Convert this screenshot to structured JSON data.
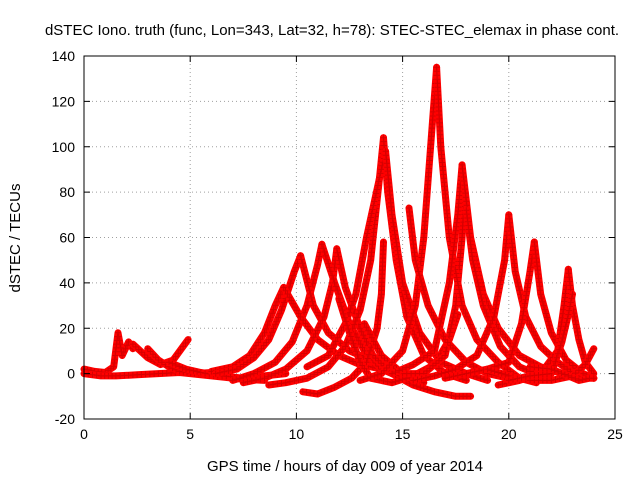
{
  "chart_data": {
    "type": "scatter",
    "title": "dSTEC Iono. truth (func, Lon=343, Lat=32, h=78): STEC-STEC_elemax in phase cont.",
    "xlabel": "GPS time / hours of day 009 of year 2014",
    "ylabel": "dSTEC  / TECUs",
    "xlim": [
      0,
      25
    ],
    "ylim": [
      -20,
      140
    ],
    "xticks": [
      "0",
      "5",
      "10",
      "15",
      "20",
      "25"
    ],
    "yticks": [
      "-20",
      "0",
      "20",
      "40",
      "60",
      "80",
      "100",
      "120",
      "140"
    ],
    "grid": true,
    "marker": "+",
    "colors": {
      "points": "#ff0000",
      "markers": "#d40000",
      "axes": "#000000",
      "grid": "#a0a0a0"
    },
    "series": [
      {
        "values": [
          [
            0,
            2
          ],
          [
            0.5,
            1
          ],
          [
            1,
            0.5
          ],
          [
            1.4,
            3
          ],
          [
            1.6,
            18
          ],
          [
            1.8,
            8
          ],
          [
            2.1,
            14
          ],
          [
            2.3,
            11
          ]
        ]
      },
      {
        "values": [
          [
            0,
            0
          ],
          [
            0.8,
            -1
          ],
          [
            1.5,
            -1
          ],
          [
            2.5,
            -0.5
          ],
          [
            3.5,
            0
          ],
          [
            4.5,
            0.5
          ],
          [
            5.5,
            -0.5
          ],
          [
            6.5,
            -1.5
          ],
          [
            7.5,
            -2.5
          ],
          [
            8.5,
            -3
          ]
        ]
      },
      {
        "values": [
          [
            2.3,
            13
          ],
          [
            3,
            7
          ],
          [
            3.6,
            4
          ],
          [
            4.2,
            6
          ],
          [
            4.9,
            15
          ]
        ]
      },
      {
        "values": [
          [
            3,
            11
          ],
          [
            3.5,
            6
          ],
          [
            4,
            3
          ],
          [
            4.5,
            1
          ],
          [
            5.2,
            0
          ],
          [
            6,
            0.5
          ]
        ]
      },
      {
        "values": [
          [
            4,
            5
          ],
          [
            4.8,
            2
          ],
          [
            5.5,
            0.5
          ],
          [
            6.5,
            -1
          ],
          [
            7.5,
            -2
          ],
          [
            8.5,
            -1
          ],
          [
            9.5,
            0
          ]
        ]
      },
      {
        "values": [
          [
            6,
            1
          ],
          [
            7,
            3
          ],
          [
            7.8,
            8
          ],
          [
            8.5,
            18
          ],
          [
            9,
            30
          ],
          [
            9.4,
            38
          ]
        ]
      },
      {
        "values": [
          [
            6.2,
            0
          ],
          [
            7.2,
            2
          ],
          [
            8,
            7
          ],
          [
            8.7,
            15
          ],
          [
            9.3,
            28
          ],
          [
            9.9,
            45
          ],
          [
            10.2,
            52
          ]
        ]
      },
      {
        "values": [
          [
            7,
            -3
          ],
          [
            8,
            0
          ],
          [
            9,
            5
          ],
          [
            9.8,
            14
          ],
          [
            10.5,
            30
          ],
          [
            11,
            48
          ],
          [
            11.2,
            57
          ]
        ]
      },
      {
        "values": [
          [
            9.4,
            38
          ],
          [
            10.2,
            25
          ],
          [
            11,
            15
          ],
          [
            12,
            8
          ],
          [
            13,
            4
          ],
          [
            14,
            2
          ]
        ]
      },
      {
        "values": [
          [
            10.2,
            52
          ],
          [
            10.8,
            30
          ],
          [
            11.5,
            18
          ],
          [
            12.5,
            10
          ],
          [
            13.5,
            6
          ]
        ]
      },
      {
        "values": [
          [
            7.5,
            -4
          ],
          [
            8.5,
            -2
          ],
          [
            9.5,
            2
          ],
          [
            10.5,
            10
          ],
          [
            11.3,
            25
          ],
          [
            11.7,
            40
          ],
          [
            11.9,
            55
          ]
        ]
      },
      {
        "values": [
          [
            11.2,
            57
          ],
          [
            11.8,
            40
          ],
          [
            12.5,
            22
          ],
          [
            13.2,
            10
          ],
          [
            14,
            2
          ],
          [
            15,
            -2
          ],
          [
            16,
            -4
          ]
        ]
      },
      {
        "values": [
          [
            11.9,
            55
          ],
          [
            12.3,
            38
          ],
          [
            13,
            20
          ],
          [
            13.6,
            8
          ],
          [
            14.5,
            0
          ],
          [
            15.5,
            -5
          ],
          [
            16.5,
            -8
          ],
          [
            17.5,
            -10
          ],
          [
            18.2,
            -10
          ]
        ]
      },
      {
        "values": [
          [
            10.3,
            -8
          ],
          [
            11,
            -9
          ],
          [
            11.8,
            -6
          ],
          [
            12.6,
            -2
          ],
          [
            13.3,
            5
          ],
          [
            13.8,
            20
          ],
          [
            14,
            35
          ],
          [
            14.1,
            58
          ]
        ]
      },
      {
        "values": [
          [
            8.7,
            -5
          ],
          [
            9.5,
            -4
          ],
          [
            10.5,
            -2
          ],
          [
            11.5,
            3
          ],
          [
            12.3,
            12
          ],
          [
            13,
            28
          ],
          [
            13.5,
            50
          ],
          [
            13.9,
            85
          ],
          [
            14.1,
            104
          ]
        ]
      },
      {
        "values": [
          [
            14.1,
            104
          ],
          [
            14.3,
            80
          ],
          [
            14.7,
            50
          ],
          [
            15.2,
            25
          ],
          [
            16,
            8
          ],
          [
            17,
            0
          ],
          [
            18,
            -3
          ]
        ]
      },
      {
        "values": [
          [
            10.5,
            3
          ],
          [
            11.5,
            8
          ],
          [
            12.3,
            22
          ],
          [
            12.8,
            35
          ],
          [
            13.3,
            60
          ],
          [
            14,
            90
          ],
          [
            14.2,
            98
          ]
        ]
      },
      {
        "values": [
          [
            14.2,
            98
          ],
          [
            14.5,
            70
          ],
          [
            15,
            40
          ],
          [
            15.8,
            18
          ],
          [
            16.8,
            5
          ],
          [
            18,
            0
          ],
          [
            19,
            -3
          ]
        ]
      },
      {
        "values": [
          [
            12,
            33
          ],
          [
            12.5,
            18
          ],
          [
            13,
            5
          ],
          [
            13.5,
            -2
          ],
          [
            14.5,
            -4
          ],
          [
            15.5,
            -1
          ],
          [
            16.5,
            4
          ],
          [
            17.2,
            15
          ],
          [
            17.6,
            26
          ]
        ]
      },
      {
        "values": [
          [
            13.2,
            22
          ],
          [
            14,
            8
          ],
          [
            15,
            0
          ],
          [
            16,
            0
          ],
          [
            17,
            8
          ],
          [
            17.5,
            30
          ],
          [
            17.8,
            60
          ],
          [
            17.9,
            77
          ]
        ]
      },
      {
        "values": [
          [
            13,
            -3
          ],
          [
            14,
            0
          ],
          [
            15,
            10
          ],
          [
            15.6,
            30
          ],
          [
            16,
            60
          ],
          [
            16.4,
            110
          ],
          [
            16.6,
            135
          ]
        ]
      },
      {
        "values": [
          [
            16.6,
            135
          ],
          [
            16.8,
            100
          ],
          [
            17.2,
            60
          ],
          [
            17.8,
            30
          ],
          [
            18.5,
            15
          ],
          [
            19.5,
            5
          ],
          [
            20.5,
            -2
          ],
          [
            21.3,
            -4
          ]
        ]
      },
      {
        "values": [
          [
            15.3,
            73
          ],
          [
            15.6,
            50
          ],
          [
            16.2,
            30
          ],
          [
            17,
            15
          ],
          [
            18,
            5
          ],
          [
            19,
            0
          ],
          [
            20,
            -2
          ]
        ]
      },
      {
        "values": [
          [
            14.5,
            0
          ],
          [
            15.5,
            4
          ],
          [
            16.5,
            10
          ],
          [
            17.2,
            40
          ],
          [
            17.6,
            70
          ],
          [
            17.8,
            92
          ]
        ]
      },
      {
        "values": [
          [
            17.8,
            92
          ],
          [
            18.2,
            60
          ],
          [
            18.8,
            35
          ],
          [
            19.5,
            20
          ],
          [
            20.5,
            8
          ],
          [
            21.5,
            3
          ],
          [
            22.5,
            0
          ]
        ]
      },
      {
        "values": [
          [
            18,
            72
          ],
          [
            18.3,
            50
          ],
          [
            18.8,
            30
          ],
          [
            19.6,
            12
          ],
          [
            20.5,
            3
          ],
          [
            21.5,
            -1
          ]
        ]
      },
      {
        "values": [
          [
            15.5,
            -3
          ],
          [
            16.5,
            -1
          ],
          [
            17.5,
            2
          ],
          [
            18.5,
            8
          ],
          [
            19.3,
            25
          ],
          [
            19.8,
            50
          ],
          [
            20,
            70
          ]
        ]
      },
      {
        "values": [
          [
            20,
            70
          ],
          [
            20.3,
            45
          ],
          [
            20.8,
            25
          ],
          [
            21.5,
            12
          ],
          [
            22.3,
            5
          ],
          [
            23.2,
            -1
          ],
          [
            24,
            -2
          ]
        ]
      },
      {
        "values": [
          [
            17,
            -2
          ],
          [
            18,
            0
          ],
          [
            19,
            2
          ],
          [
            20,
            5
          ],
          [
            20.6,
            22
          ],
          [
            21,
            45
          ],
          [
            21.2,
            58
          ]
        ]
      },
      {
        "values": [
          [
            21.2,
            58
          ],
          [
            21.5,
            35
          ],
          [
            22,
            18
          ],
          [
            22.7,
            6
          ],
          [
            23.5,
            0
          ],
          [
            24,
            -2
          ]
        ]
      },
      {
        "values": [
          [
            19.5,
            -5
          ],
          [
            20.5,
            -3
          ],
          [
            21.5,
            0
          ],
          [
            22.3,
            10
          ],
          [
            22.6,
            30
          ],
          [
            22.8,
            46
          ]
        ]
      },
      {
        "values": [
          [
            22.8,
            46
          ],
          [
            23,
            30
          ],
          [
            23.3,
            15
          ],
          [
            23.6,
            5
          ],
          [
            24,
            0
          ]
        ]
      },
      {
        "values": [
          [
            19,
            2
          ],
          [
            20,
            -1
          ],
          [
            21,
            -3
          ],
          [
            22,
            -3
          ],
          [
            23,
            -1
          ],
          [
            23.6,
            4
          ],
          [
            24,
            11
          ]
        ]
      },
      {
        "values": [
          [
            20,
            -3
          ],
          [
            21,
            -1
          ],
          [
            22,
            0
          ],
          [
            22.5,
            14
          ],
          [
            22.8,
            26
          ],
          [
            23,
            35
          ]
        ]
      },
      {
        "values": [
          [
            21,
            3
          ],
          [
            22,
            2
          ],
          [
            22.8,
            -1
          ],
          [
            23.3,
            -3
          ],
          [
            23.8,
            -2
          ],
          [
            24,
            -2
          ]
        ]
      }
    ]
  }
}
